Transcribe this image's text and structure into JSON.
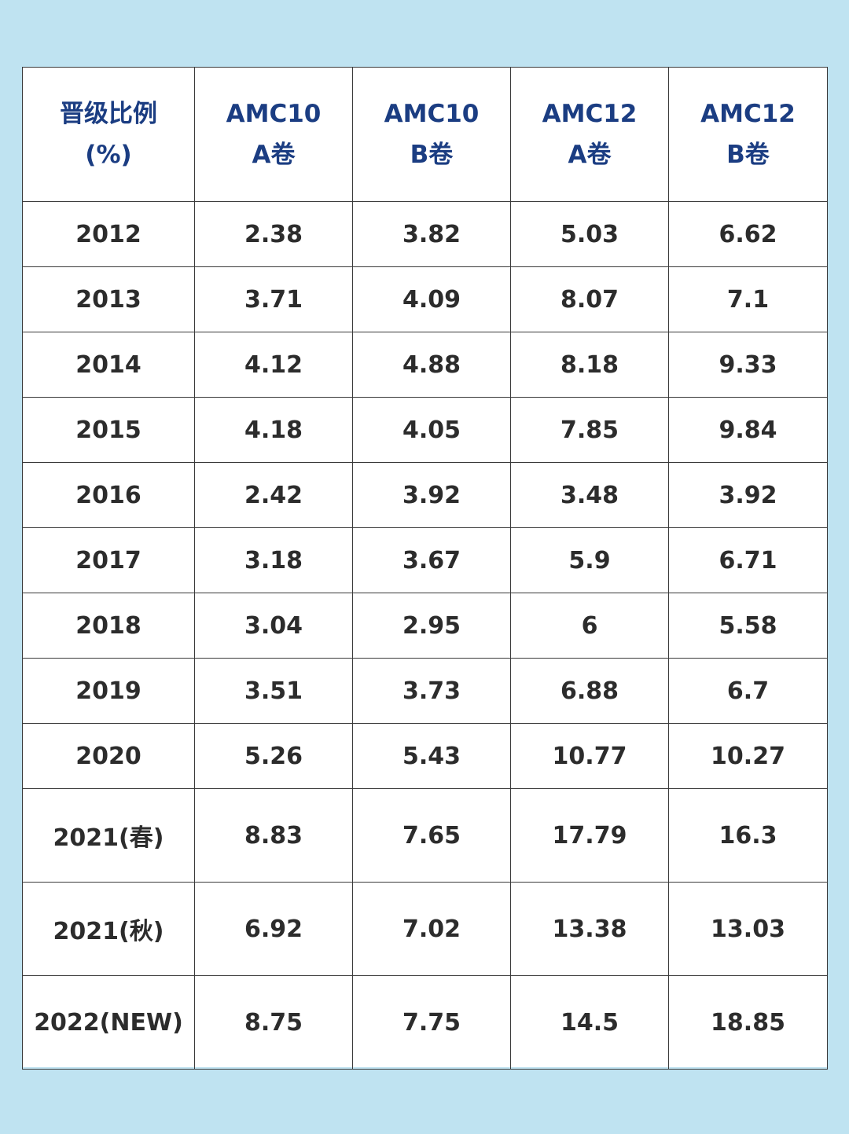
{
  "chart_data": {
    "type": "table",
    "columns": [
      {
        "line1": "晋级比例",
        "line2": "(%)"
      },
      {
        "line1": "AMC10",
        "line2": "A卷"
      },
      {
        "line1": "AMC10",
        "line2": "B卷"
      },
      {
        "line1": "AMC12",
        "line2": "A卷"
      },
      {
        "line1": "AMC12",
        "line2": "B卷"
      }
    ],
    "rows": [
      {
        "year": "2012",
        "values": [
          "2.38",
          "3.82",
          "5.03",
          "6.62"
        ]
      },
      {
        "year": "2013",
        "values": [
          "3.71",
          "4.09",
          "8.07",
          "7.1"
        ]
      },
      {
        "year": "2014",
        "values": [
          "4.12",
          "4.88",
          "8.18",
          "9.33"
        ]
      },
      {
        "year": "2015",
        "values": [
          "4.18",
          "4.05",
          "7.85",
          "9.84"
        ]
      },
      {
        "year": "2016",
        "values": [
          "2.42",
          "3.92",
          "3.48",
          "3.92"
        ]
      },
      {
        "year": "2017",
        "values": [
          "3.18",
          "3.67",
          "5.9",
          "6.71"
        ]
      },
      {
        "year": "2018",
        "values": [
          "3.04",
          "2.95",
          "6",
          "5.58"
        ]
      },
      {
        "year": "2019",
        "values": [
          "3.51",
          "3.73",
          "6.88",
          "6.7"
        ]
      },
      {
        "year": "2020",
        "values": [
          "5.26",
          "5.43",
          "10.77",
          "10.27"
        ]
      },
      {
        "year": "2021(春)",
        "values": [
          "8.83",
          "7.65",
          "17.79",
          "16.3"
        ]
      },
      {
        "year": "2021(秋)",
        "values": [
          "6.92",
          "7.02",
          "13.38",
          "13.03"
        ]
      },
      {
        "year": "2022(NEW)",
        "values": [
          "8.75",
          "7.75",
          "14.5",
          "18.85"
        ]
      }
    ]
  },
  "colors": {
    "background": "#bfe3f1",
    "header_text": "#1b3d82",
    "cell_text": "#2c2c2c",
    "border": "#3a3a3a"
  }
}
